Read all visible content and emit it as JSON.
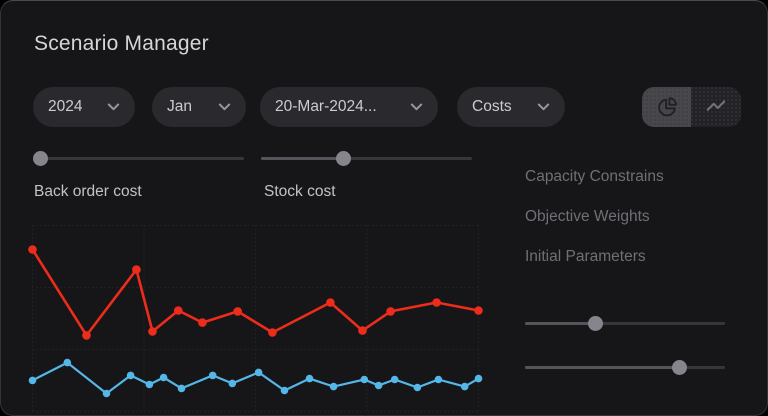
{
  "header": {
    "title": "Scenario Manager"
  },
  "filters": {
    "year": {
      "label": "2024"
    },
    "month": {
      "label": "Jan"
    },
    "date": {
      "label": "20-Mar-2024..."
    },
    "metric": {
      "label": "Costs"
    }
  },
  "view_toggle": {
    "options": [
      "pie-chart-view",
      "line-chart-view"
    ],
    "active_index": 0
  },
  "sliders": [
    {
      "name": "back-order-cost",
      "label": "Back order cost",
      "value_pct": 3.3
    },
    {
      "name": "stock-cost",
      "label": "Stock cost",
      "value_pct": 38.9
    },
    {
      "name": "right-param-1",
      "value_pct": 35
    },
    {
      "name": "right-param-2",
      "value_pct": 77
    }
  ],
  "menu": {
    "items": [
      "Capacity Constrains",
      "Objective Weights",
      "Initial Parameters"
    ]
  },
  "colors": {
    "card_bg": "#161618",
    "pill_bg": "#2a2a2e",
    "grid": "#2c2c30",
    "red_series": "#ee2c1b",
    "blue_series": "#55b6e8",
    "thumb": "#84858d"
  },
  "chart_data": {
    "type": "line",
    "title": "",
    "xlabel": "",
    "ylabel": "",
    "axes_labeled": false,
    "grid": {
      "vertical_lines": 5,
      "horizontal_lines": 4,
      "style": "dotted"
    },
    "y_scale": "relative_percent_0_100_estimated_from_pixels",
    "series": [
      {
        "name": "red",
        "color": "#ee2c1b",
        "line_width": 2.6,
        "marker_radius": 4.3,
        "points": [
          [
            0,
            87.1
          ],
          [
            12.1,
            40.9
          ],
          [
            23.3,
            76.3
          ],
          [
            26.9,
            43.0
          ],
          [
            32.7,
            54.3
          ],
          [
            38.1,
            47.8
          ],
          [
            46.0,
            53.8
          ],
          [
            53.8,
            42.5
          ],
          [
            66.8,
            58.6
          ],
          [
            74.0,
            43.5
          ],
          [
            80.3,
            53.8
          ],
          [
            90.6,
            58.6
          ],
          [
            100,
            54.3
          ]
        ]
      },
      {
        "name": "blue",
        "color": "#55b6e8",
        "line_width": 2.2,
        "marker_radius": 3.8,
        "points": [
          [
            0,
            16.7
          ],
          [
            7.8,
            26.3
          ],
          [
            16.6,
            9.7
          ],
          [
            22.0,
            19.4
          ],
          [
            26.2,
            14.5
          ],
          [
            29.4,
            18.3
          ],
          [
            33.4,
            12.4
          ],
          [
            40.4,
            19.4
          ],
          [
            44.8,
            15.1
          ],
          [
            50.7,
            21.0
          ],
          [
            56.5,
            11.3
          ],
          [
            62.1,
            17.7
          ],
          [
            67.5,
            13.4
          ],
          [
            74.4,
            17.2
          ],
          [
            77.6,
            14.0
          ],
          [
            81.2,
            17.2
          ],
          [
            86.3,
            12.9
          ],
          [
            91.0,
            17.2
          ],
          [
            96.9,
            13.4
          ],
          [
            100,
            17.7
          ]
        ]
      }
    ]
  }
}
